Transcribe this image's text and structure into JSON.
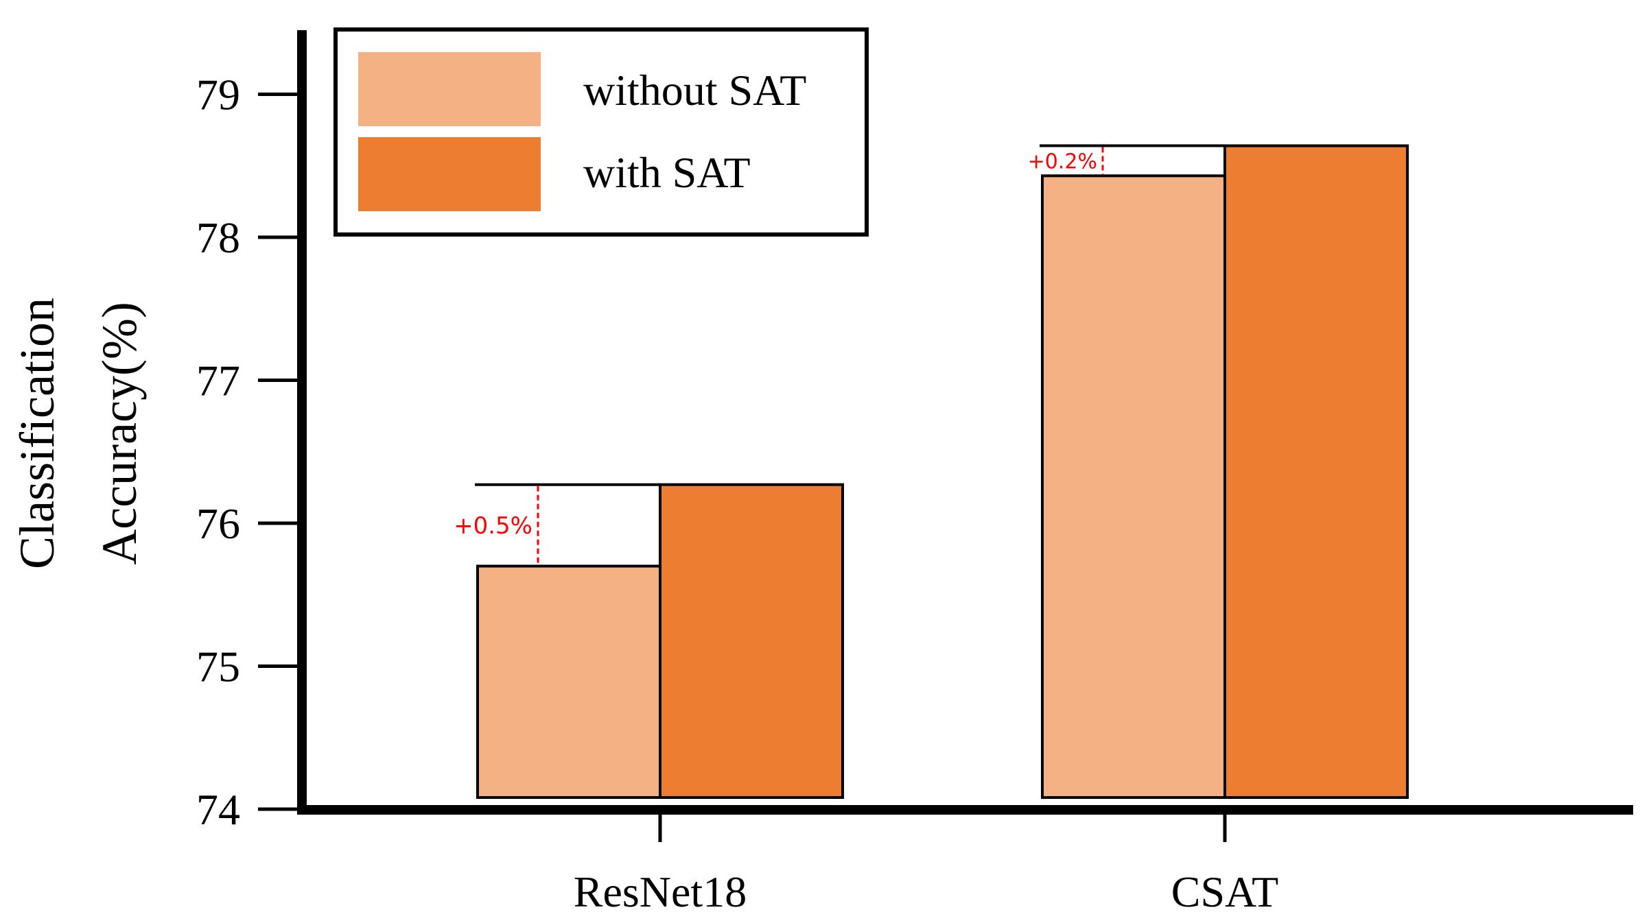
{
  "chart_data": {
    "type": "bar",
    "title": "",
    "xlabel": "",
    "ylabel_lines": [
      "Classification",
      "Accuracy(%)"
    ],
    "categories": [
      "ResNet18",
      "CSAT"
    ],
    "series": [
      {
        "name": "without SAT",
        "values": [
          75.7,
          78.43
        ],
        "color": "#F4B183"
      },
      {
        "name": "with SAT",
        "values": [
          76.27,
          78.64
        ],
        "color": "#ED7D31"
      }
    ],
    "ylim": [
      74,
      79.5
    ],
    "yticks": [
      74,
      75,
      76,
      77,
      78,
      79
    ],
    "grid": false,
    "legend_position": "top-left",
    "annotations": [
      {
        "category_index": 0,
        "text": "+0.5%",
        "color": "#FF0000"
      },
      {
        "category_index": 1,
        "text": "+0.2%",
        "color": "#FF0000"
      }
    ]
  }
}
